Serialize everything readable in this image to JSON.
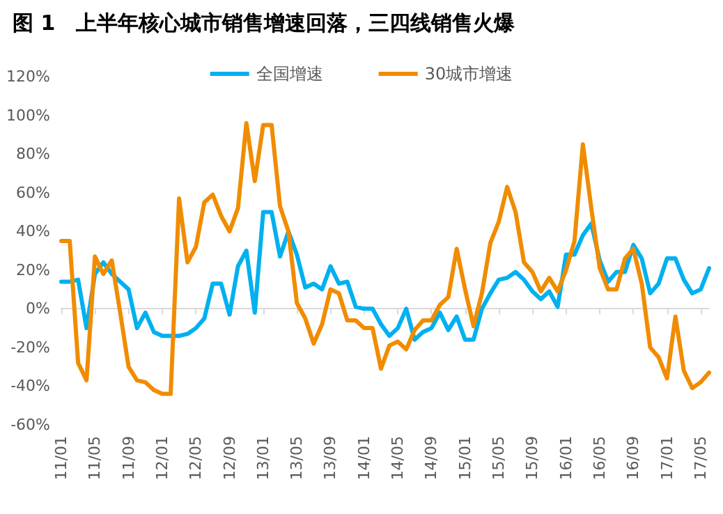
{
  "chart_data": {
    "type": "line",
    "title": "图 1　上半年核心城市销售增速回落，三四线销售火爆",
    "categories": [
      "11/01",
      null,
      null,
      null,
      "11/05",
      null,
      null,
      null,
      "11/09",
      null,
      null,
      null,
      "12/01",
      null,
      null,
      null,
      "12/05",
      null,
      null,
      null,
      "12/09",
      null,
      null,
      null,
      "13/01",
      null,
      null,
      null,
      "13/05",
      null,
      null,
      null,
      "13/09",
      null,
      null,
      null,
      "14/01",
      null,
      null,
      null,
      "14/05",
      null,
      null,
      null,
      "14/09",
      null,
      null,
      null,
      "15/01",
      null,
      null,
      null,
      "15/05",
      null,
      null,
      null,
      "15/09",
      null,
      null,
      null,
      "16/01",
      null,
      null,
      null,
      "16/05",
      null,
      null,
      null,
      "16/09",
      null,
      null,
      null,
      "17/01",
      null,
      null,
      null,
      "17/05",
      null
    ],
    "series": [
      {
        "name": "全国增速",
        "color": "#00b0f0",
        "values": [
          14,
          14,
          15,
          -10,
          18,
          24,
          18,
          14,
          10,
          -10,
          -2,
          -12,
          -14,
          -14,
          -14,
          -13,
          -10,
          -5,
          13,
          13,
          -3,
          22,
          30,
          -2,
          50,
          50,
          27,
          40,
          28,
          11,
          13,
          10,
          22,
          13,
          14,
          1,
          0,
          0,
          -8,
          -14,
          -10,
          0,
          -16,
          -12,
          -10,
          -2,
          -11,
          -4,
          -16,
          -16,
          0,
          8,
          15,
          16,
          19,
          15,
          9,
          5,
          9,
          1,
          28,
          28,
          38,
          44,
          25,
          14,
          19,
          19,
          33,
          26,
          8,
          13,
          26,
          26,
          15,
          8,
          10,
          21
        ]
      },
      {
        "name": "30城市增速",
        "color": "#f08c00",
        "values": [
          35,
          35,
          -28,
          -37,
          27,
          18,
          25,
          -2,
          -30,
          -37,
          -38,
          -42,
          -44,
          -44,
          57,
          24,
          32,
          55,
          59,
          48,
          40,
          52,
          96,
          66,
          95,
          95,
          53,
          40,
          3,
          -5,
          -18,
          -8,
          10,
          8,
          -6,
          -6,
          -10,
          -10,
          -31,
          -19,
          -17,
          -21,
          -11,
          -6,
          -6,
          2,
          6,
          31,
          10,
          -9,
          8,
          34,
          45,
          63,
          50,
          24,
          19,
          9,
          16,
          9,
          20,
          35,
          85,
          52,
          21,
          10,
          10,
          26,
          31,
          13,
          -20,
          -25,
          -36,
          -4,
          -32,
          -41,
          -38,
          -33
        ]
      }
    ],
    "ylim": [
      -60,
      120
    ],
    "yticks": [
      {
        "value": -60,
        "label": "-60%"
      },
      {
        "value": -40,
        "label": "-40%"
      },
      {
        "value": -20,
        "label": "-20%"
      },
      {
        "value": 0,
        "label": "0%"
      },
      {
        "value": 20,
        "label": "20%"
      },
      {
        "value": 40,
        "label": "40%"
      },
      {
        "value": 60,
        "label": "60%"
      },
      {
        "value": 80,
        "label": "80%"
      },
      {
        "value": 100,
        "label": "100%"
      },
      {
        "value": 120,
        "label": "120%"
      }
    ],
    "legend": "top",
    "marker": "none",
    "line_style": "solid"
  }
}
